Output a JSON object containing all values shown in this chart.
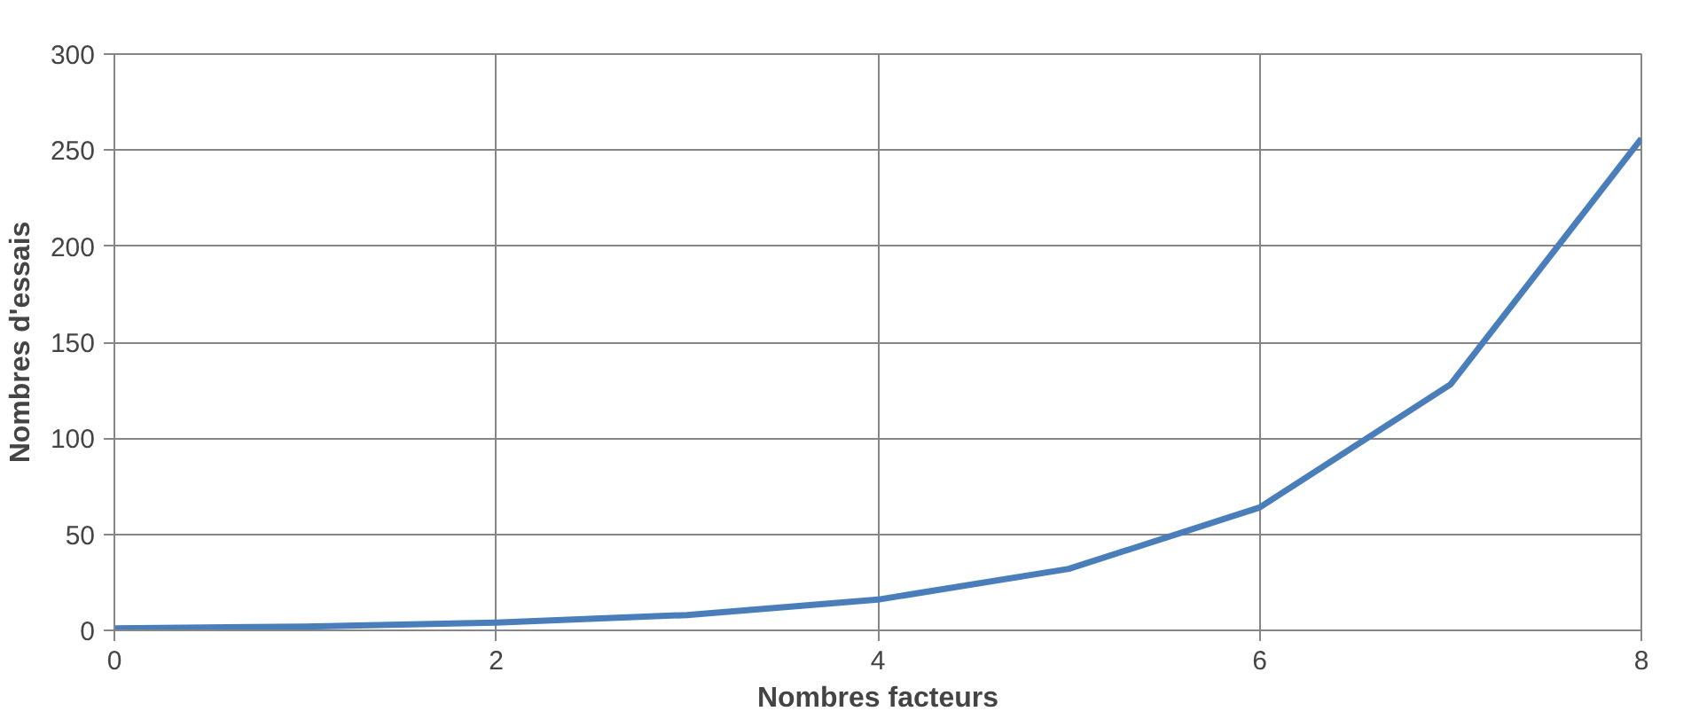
{
  "chart_data": {
    "type": "line",
    "xlabel": "Nombres facteurs",
    "ylabel": "Nombres d'essais",
    "x": [
      0,
      1,
      2,
      3,
      4,
      5,
      6,
      7,
      8
    ],
    "series": [
      {
        "color": "#4a7ebb",
        "values": [
          1,
          2,
          4,
          8,
          16,
          32,
          64,
          128,
          256
        ]
      }
    ],
    "xlim": [
      0,
      8
    ],
    "ylim": [
      0,
      300
    ],
    "xticks": [
      0,
      2,
      4,
      6,
      8
    ],
    "yticks": [
      0,
      50,
      100,
      150,
      200,
      250,
      300
    ],
    "grid": true,
    "marker": "none",
    "line_style": "solid"
  }
}
